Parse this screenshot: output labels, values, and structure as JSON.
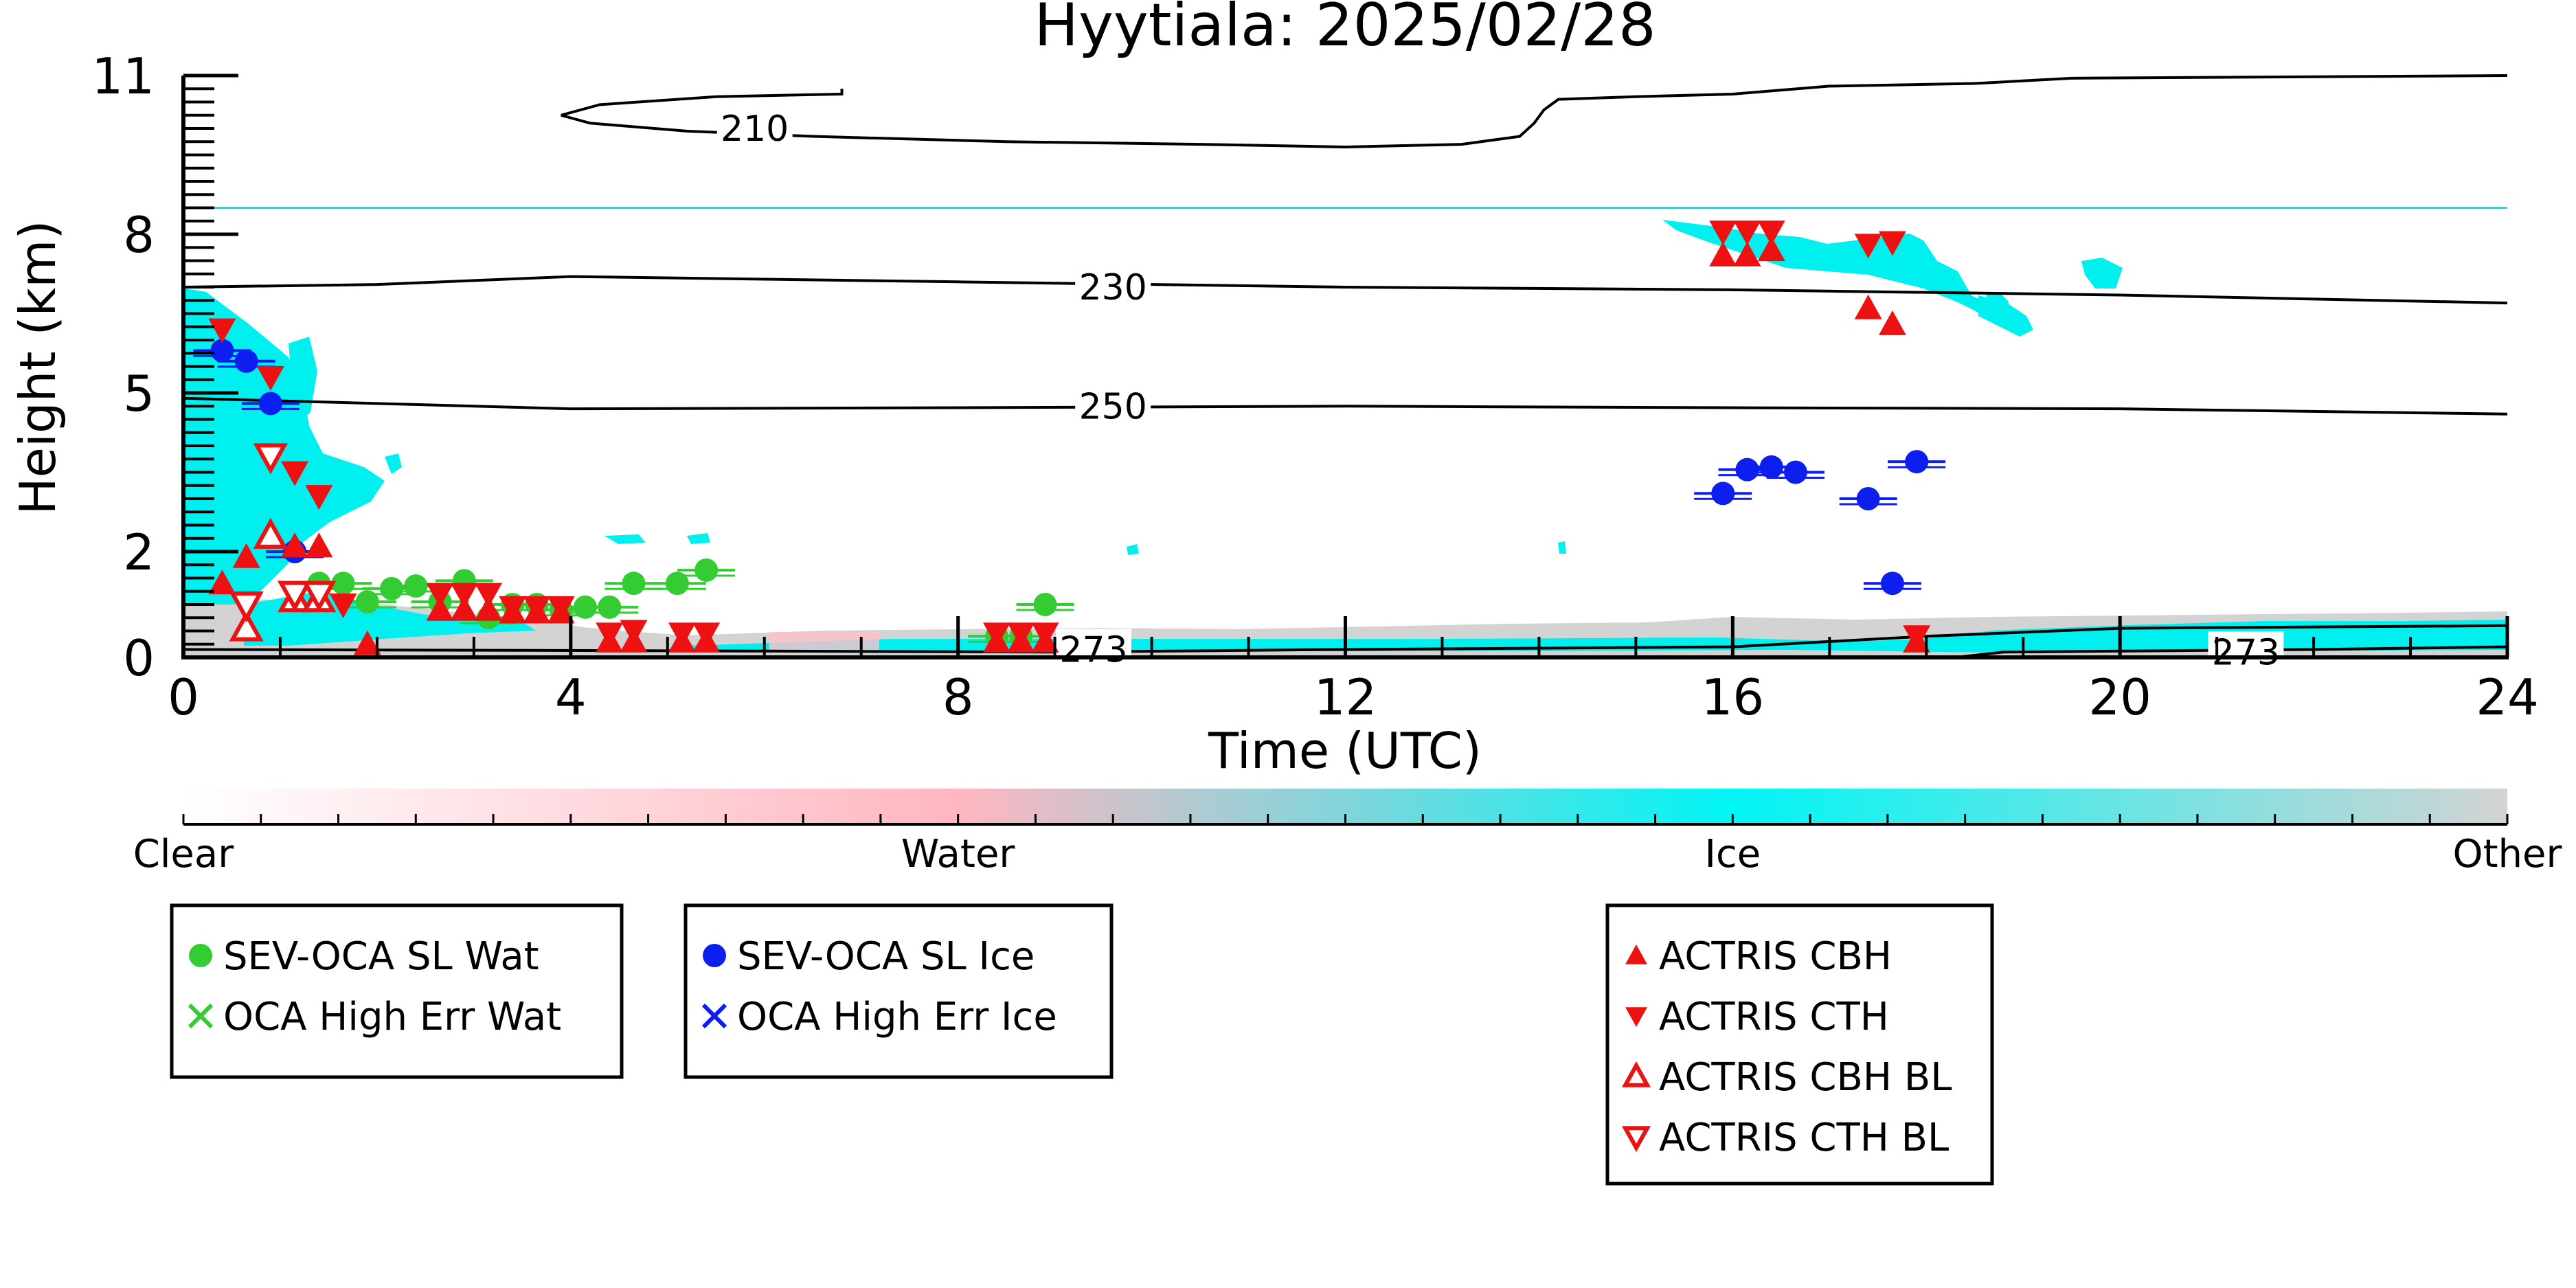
{
  "chart_data": {
    "type": "scatter",
    "title": "Hyytiala: 2025/02/28",
    "xlabel": "Time (UTC)",
    "ylabel": "Height (km)",
    "xlim": [
      0,
      24
    ],
    "ylim": [
      0,
      11
    ],
    "x_ticks": [
      0,
      4,
      8,
      12,
      16,
      20,
      24
    ],
    "y_ticks": [
      0,
      2,
      5,
      8,
      11
    ],
    "y_tick_labels": [
      "0",
      "2",
      "5",
      "8",
      "11"
    ],
    "grid": false,
    "reference_line": {
      "height": 8.5,
      "color": "#00e5ee"
    },
    "colorbar": {
      "labels": [
        "Clear",
        "Water",
        "Ice",
        "Other"
      ],
      "colors": [
        "#ffffff",
        "#ffb6c1",
        "#00f5f5",
        "#d3d3d3"
      ]
    },
    "contours": [
      {
        "label": "210",
        "label_at": [
          5.9,
          10.0
        ],
        "segments": [
          [
            [
              3.9,
              10.25
            ],
            [
              4.2,
              10.1
            ],
            [
              5.2,
              9.95
            ],
            [
              6.5,
              9.85
            ],
            [
              8.5,
              9.75
            ],
            [
              10.5,
              9.7
            ],
            [
              12.0,
              9.65
            ],
            [
              13.2,
              9.7
            ],
            [
              13.8,
              9.85
            ],
            [
              13.95,
              10.1
            ],
            [
              14.05,
              10.35
            ],
            [
              14.2,
              10.55
            ],
            [
              15.0,
              10.6
            ],
            [
              16.0,
              10.65
            ],
            [
              17.0,
              10.8
            ],
            [
              18.5,
              10.85
            ],
            [
              19.5,
              10.95
            ],
            [
              24.0,
              11.0
            ]
          ],
          [
            [
              3.9,
              10.25
            ],
            [
              4.3,
              10.45
            ],
            [
              5.5,
              10.6
            ],
            [
              6.8,
              10.65
            ],
            [
              6.8,
              10.75
            ]
          ]
        ]
      },
      {
        "label": "230",
        "label_at": [
          9.6,
          7.0
        ],
        "segments": [
          [
            [
              0.0,
              7.0
            ],
            [
              2.0,
              7.05
            ],
            [
              4.0,
              7.2
            ],
            [
              8.0,
              7.1
            ],
            [
              12.0,
              7.0
            ],
            [
              16.0,
              6.95
            ],
            [
              20.0,
              6.85
            ],
            [
              24.0,
              6.7
            ]
          ]
        ]
      },
      {
        "label": "250",
        "label_at": [
          9.6,
          4.75
        ],
        "segments": [
          [
            [
              0.0,
              4.9
            ],
            [
              2.0,
              4.8
            ],
            [
              4.0,
              4.7
            ],
            [
              8.0,
              4.72
            ],
            [
              12.0,
              4.75
            ],
            [
              16.0,
              4.72
            ],
            [
              20.0,
              4.7
            ],
            [
              24.0,
              4.6
            ]
          ]
        ]
      },
      {
        "label": "273",
        "label_at": [
          9.4,
          0.15
        ],
        "segments": [
          [
            [
              0.0,
              0.15
            ],
            [
              6.0,
              0.12
            ],
            [
              9.0,
              0.1
            ],
            [
              12.0,
              0.15
            ],
            [
              16.0,
              0.2
            ],
            [
              17.0,
              0.3
            ],
            [
              18.0,
              0.4
            ],
            [
              20.0,
              0.55
            ],
            [
              24.0,
              0.6
            ]
          ]
        ]
      },
      {
        "label": "273",
        "label_at": [
          21.3,
          0.1
        ],
        "segments": [
          [
            [
              18.3,
              0.0
            ],
            [
              18.8,
              0.1
            ],
            [
              22.0,
              0.15
            ],
            [
              24.0,
              0.2
            ]
          ]
        ]
      }
    ],
    "series": [
      {
        "name": "SEV-OCA SL Wat",
        "marker": "circle-filled",
        "color": "#33cc33",
        "x": [
          1.4,
          1.65,
          1.9,
          2.15,
          2.4,
          2.65,
          2.9,
          3.15,
          3.4,
          3.65,
          3.9,
          4.15,
          4.4,
          4.65,
          5.1,
          5.4,
          8.4,
          8.65,
          8.9
        ],
        "y": [
          1.4,
          1.4,
          1.05,
          1.3,
          1.35,
          1.05,
          1.45,
          0.75,
          1.0,
          1.0,
          0.9,
          0.95,
          0.95,
          1.4,
          1.4,
          1.65,
          0.4,
          0.4,
          1.0
        ]
      },
      {
        "name": "SEV-OCA SL Ice",
        "marker": "circle-filled",
        "color": "#0d1fee",
        "x": [
          0.4,
          0.65,
          0.9,
          1.15,
          15.9,
          16.15,
          16.4,
          16.65,
          17.4,
          17.65,
          17.9
        ],
        "y": [
          5.8,
          5.6,
          4.8,
          2.0,
          3.1,
          3.55,
          3.6,
          3.5,
          3.0,
          1.4,
          3.7
        ]
      },
      {
        "name": "ACTRIS CBH",
        "marker": "triangle-up-filled",
        "color": "#ee1111",
        "x": [
          0.4,
          0.65,
          1.15,
          1.4,
          1.9,
          2.65,
          2.9,
          3.15,
          3.4,
          3.65,
          3.9,
          4.4,
          4.65,
          5.15,
          5.4,
          8.4,
          8.65,
          8.9,
          15.9,
          16.15,
          16.4,
          17.4,
          17.65,
          17.9
        ],
        "y": [
          1.4,
          1.9,
          2.1,
          2.1,
          0.25,
          0.9,
          0.9,
          0.9,
          0.85,
          0.85,
          0.85,
          0.3,
          0.3,
          0.3,
          0.3,
          0.3,
          0.3,
          0.3,
          7.6,
          7.6,
          7.7,
          6.6,
          6.3,
          0.3
        ]
      },
      {
        "name": "ACTRIS CTH",
        "marker": "triangle-down-filled",
        "color": "#ee1111",
        "x": [
          0.4,
          0.9,
          1.15,
          1.4,
          1.65,
          2.65,
          2.9,
          3.15,
          3.4,
          3.65,
          3.9,
          4.4,
          4.65,
          5.15,
          5.4,
          8.4,
          8.65,
          8.9,
          15.9,
          16.15,
          16.4,
          17.4,
          17.65,
          17.9
        ],
        "y": [
          6.2,
          5.3,
          3.5,
          3.05,
          1.0,
          1.2,
          1.2,
          1.2,
          0.95,
          0.95,
          0.95,
          0.45,
          0.5,
          0.45,
          0.45,
          0.45,
          0.45,
          0.45,
          8.05,
          8.05,
          8.05,
          7.8,
          7.85,
          0.4
        ]
      },
      {
        "name": "ACTRIS CBH BL",
        "marker": "triangle-up-open",
        "color": "#ee1111",
        "x": [
          0.65,
          0.9,
          1.15,
          1.4
        ],
        "y": [
          0.55,
          2.3,
          1.1,
          1.1
        ]
      },
      {
        "name": "ACTRIS CTH BL",
        "marker": "triangle-down-open",
        "color": "#ee1111",
        "x": [
          0.65,
          0.9,
          1.15,
          1.4
        ],
        "y": [
          1.0,
          3.8,
          1.2,
          1.2
        ]
      },
      {
        "name": "OCA High Err Wat",
        "marker": "x",
        "color": "#33cc33",
        "x": [],
        "y": []
      },
      {
        "name": "OCA High Err Ice",
        "marker": "x",
        "color": "#0d1fee",
        "x": [],
        "y": []
      }
    ],
    "legends": [
      {
        "placement": "bottom-left",
        "entries": [
          {
            "label": "SEV-OCA SL Wat",
            "marker": "circle-filled",
            "color": "#33cc33"
          },
          {
            "label": "OCA High Err Wat",
            "marker": "x",
            "color": "#33cc33"
          }
        ]
      },
      {
        "placement": "bottom-left",
        "entries": [
          {
            "label": "SEV-OCA SL Ice",
            "marker": "circle-filled",
            "color": "#0d1fee"
          },
          {
            "label": "OCA High Err Ice",
            "marker": "x",
            "color": "#0d1fee"
          }
        ]
      },
      {
        "placement": "bottom-center",
        "entries": [
          {
            "label": "ACTRIS CBH",
            "marker": "triangle-up-filled",
            "color": "#ee1111"
          },
          {
            "label": "ACTRIS CTH",
            "marker": "triangle-down-filled",
            "color": "#ee1111"
          },
          {
            "label": "ACTRIS CBH BL",
            "marker": "triangle-up-open",
            "color": "#ee1111"
          },
          {
            "label": "ACTRIS CTH BL",
            "marker": "triangle-down-open",
            "color": "#ee1111"
          }
        ]
      }
    ]
  }
}
